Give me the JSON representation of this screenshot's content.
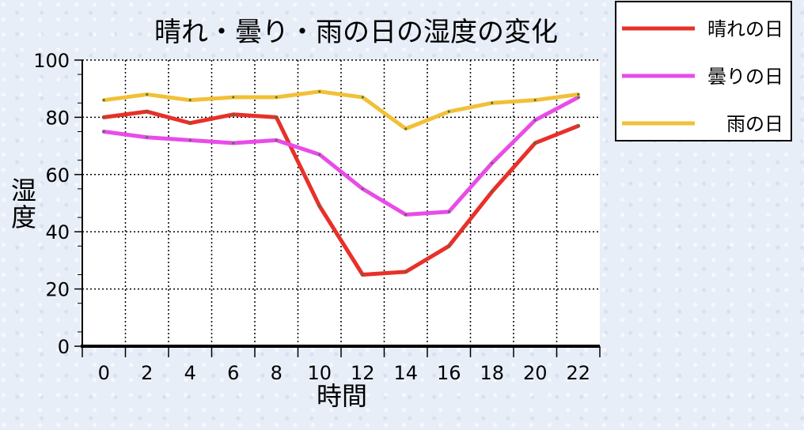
{
  "chart_data": {
    "type": "line",
    "title": "晴れ・曇り・雨の日の湿度の変化",
    "xlabel": "時間",
    "ylabel": "湿度",
    "x": [
      0,
      2,
      4,
      6,
      8,
      10,
      12,
      14,
      16,
      18,
      20,
      22
    ],
    "xlim": [
      -1,
      23
    ],
    "ylim": [
      0,
      100
    ],
    "yticks": [
      0,
      20,
      40,
      60,
      80,
      100
    ],
    "grid": true,
    "legend_position": "top-right outside",
    "series": [
      {
        "name": "晴れの日",
        "color": "#e8302a",
        "values": [
          80,
          82,
          78,
          81,
          80,
          49,
          25,
          26,
          35,
          54,
          71,
          77
        ]
      },
      {
        "name": "曇りの日",
        "color": "#e84ce8",
        "values": [
          75,
          73,
          72,
          71,
          72,
          67,
          55,
          46,
          47,
          64,
          79,
          87
        ]
      },
      {
        "name": "雨の日",
        "color": "#f2c037",
        "values": [
          86,
          88,
          86,
          87,
          87,
          89,
          87,
          76,
          82,
          85,
          86,
          88
        ]
      }
    ]
  }
}
